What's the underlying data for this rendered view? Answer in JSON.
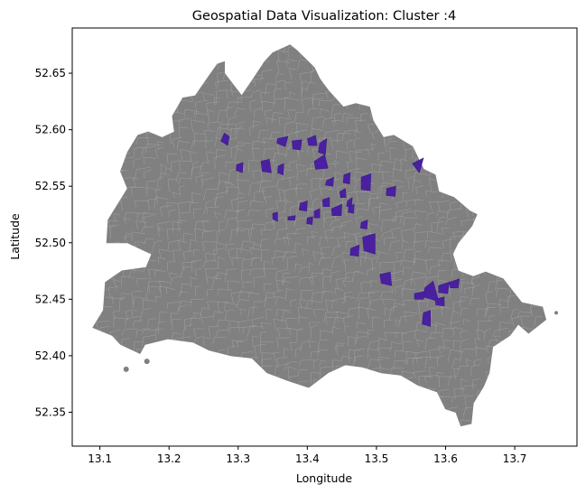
{
  "figure": {
    "title": "Geospatial Data Visualization: Cluster :4",
    "xlabel": "Longitude",
    "ylabel": "Latitude"
  },
  "colors": {
    "base_region": "#808080",
    "district_lines": "#b0b0b0",
    "highlight": "#4a20a0",
    "axes": "#000000",
    "background": "#ffffff"
  },
  "chart_data": {
    "type": "choropleth-map",
    "xlim": [
      13.06,
      13.79
    ],
    "ylim": [
      52.32,
      52.69
    ],
    "xticks": [
      13.1,
      13.2,
      13.3,
      13.4,
      13.5,
      13.6,
      13.7
    ],
    "xtick_labels": [
      "13.1",
      "13.2",
      "13.3",
      "13.4",
      "13.5",
      "13.6",
      "13.7"
    ],
    "yticks": [
      52.35,
      52.4,
      52.45,
      52.5,
      52.55,
      52.6,
      52.65
    ],
    "ytick_labels": [
      "52.35",
      "52.40",
      "52.45",
      "52.50",
      "52.55",
      "52.60",
      "52.65"
    ],
    "grid": false,
    "outline": [
      [
        13.118,
        52.418
      ],
      [
        13.13,
        52.41
      ],
      [
        13.158,
        52.402
      ],
      [
        13.165,
        52.41
      ],
      [
        13.198,
        52.415
      ],
      [
        13.235,
        52.412
      ],
      [
        13.258,
        52.405
      ],
      [
        13.29,
        52.4
      ],
      [
        13.32,
        52.398
      ],
      [
        13.342,
        52.385
      ],
      [
        13.372,
        52.378
      ],
      [
        13.402,
        52.372
      ],
      [
        13.43,
        52.385
      ],
      [
        13.455,
        52.392
      ],
      [
        13.48,
        52.39
      ],
      [
        13.507,
        52.385
      ],
      [
        13.535,
        52.383
      ],
      [
        13.56,
        52.374
      ],
      [
        13.588,
        52.368
      ],
      [
        13.6,
        52.353
      ],
      [
        13.615,
        52.35
      ],
      [
        13.622,
        52.338
      ],
      [
        13.637,
        52.34
      ],
      [
        13.64,
        52.358
      ],
      [
        13.655,
        52.373
      ],
      [
        13.663,
        52.385
      ],
      [
        13.668,
        52.408
      ],
      [
        13.693,
        52.418
      ],
      [
        13.705,
        52.428
      ],
      [
        13.72,
        52.42
      ],
      [
        13.745,
        52.432
      ],
      [
        13.74,
        52.443
      ],
      [
        13.71,
        52.447
      ],
      [
        13.683,
        52.468
      ],
      [
        13.658,
        52.474
      ],
      [
        13.64,
        52.47
      ],
      [
        13.618,
        52.475
      ],
      [
        13.61,
        52.49
      ],
      [
        13.618,
        52.5
      ],
      [
        13.638,
        52.515
      ],
      [
        13.645,
        52.525
      ],
      [
        13.635,
        52.528
      ],
      [
        13.612,
        52.54
      ],
      [
        13.59,
        52.545
      ],
      [
        13.585,
        52.56
      ],
      [
        13.568,
        52.565
      ],
      [
        13.552,
        52.585
      ],
      [
        13.525,
        52.595
      ],
      [
        13.51,
        52.593
      ],
      [
        13.495,
        52.608
      ],
      [
        13.49,
        52.62
      ],
      [
        13.47,
        52.623
      ],
      [
        13.452,
        52.62
      ],
      [
        13.43,
        52.635
      ],
      [
        13.418,
        52.645
      ],
      [
        13.41,
        52.655
      ],
      [
        13.385,
        52.67
      ],
      [
        13.375,
        52.675
      ],
      [
        13.35,
        52.668
      ],
      [
        13.338,
        52.66
      ],
      [
        13.322,
        52.645
      ],
      [
        13.305,
        52.63
      ],
      [
        13.29,
        52.642
      ],
      [
        13.28,
        52.65
      ],
      [
        13.28,
        52.66
      ],
      [
        13.27,
        52.658
      ],
      [
        13.255,
        52.645
      ],
      [
        13.238,
        52.63
      ],
      [
        13.22,
        52.628
      ],
      [
        13.205,
        52.612
      ],
      [
        13.208,
        52.598
      ],
      [
        13.19,
        52.593
      ],
      [
        13.17,
        52.598
      ],
      [
        13.155,
        52.595
      ],
      [
        13.14,
        52.58
      ],
      [
        13.13,
        52.563
      ],
      [
        13.14,
        52.548
      ],
      [
        13.128,
        52.536
      ],
      [
        13.112,
        52.52
      ],
      [
        13.11,
        52.5
      ],
      [
        13.14,
        52.5
      ],
      [
        13.175,
        52.49
      ],
      [
        13.167,
        52.478
      ],
      [
        13.132,
        52.475
      ],
      [
        13.108,
        52.465
      ],
      [
        13.105,
        52.44
      ],
      [
        13.09,
        52.425
      ]
    ],
    "highlighted_districts": [
      [
        [
          13.275,
          52.59
        ],
        [
          13.285,
          52.586
        ],
        [
          13.287,
          52.594
        ],
        [
          13.28,
          52.597
        ]
      ],
      [
        [
          13.357,
          52.592
        ],
        [
          13.372,
          52.594
        ],
        [
          13.368,
          52.585
        ],
        [
          13.356,
          52.588
        ]
      ],
      [
        [
          13.378,
          52.59
        ],
        [
          13.392,
          52.591
        ],
        [
          13.39,
          52.582
        ],
        [
          13.379,
          52.583
        ]
      ],
      [
        [
          13.4,
          52.592
        ],
        [
          13.412,
          52.595
        ],
        [
          13.414,
          52.586
        ],
        [
          13.402,
          52.586
        ]
      ],
      [
        [
          13.418,
          52.588
        ],
        [
          13.428,
          52.592
        ],
        [
          13.426,
          52.578
        ],
        [
          13.416,
          52.58
        ]
      ],
      [
        [
          13.41,
          52.572
        ],
        [
          13.425,
          52.578
        ],
        [
          13.43,
          52.566
        ],
        [
          13.412,
          52.565
        ]
      ],
      [
        [
          13.298,
          52.569
        ],
        [
          13.307,
          52.571
        ],
        [
          13.306,
          52.562
        ],
        [
          13.297,
          52.564
        ]
      ],
      [
        [
          13.333,
          52.572
        ],
        [
          13.345,
          52.574
        ],
        [
          13.348,
          52.562
        ],
        [
          13.335,
          52.563
        ]
      ],
      [
        [
          13.358,
          52.568
        ],
        [
          13.366,
          52.57
        ],
        [
          13.365,
          52.56
        ],
        [
          13.357,
          52.562
        ]
      ],
      [
        [
          13.428,
          52.555
        ],
        [
          13.438,
          52.558
        ],
        [
          13.437,
          52.55
        ],
        [
          13.426,
          52.551
        ]
      ],
      [
        [
          13.453,
          52.56
        ],
        [
          13.462,
          52.562
        ],
        [
          13.461,
          52.552
        ],
        [
          13.452,
          52.553
        ]
      ],
      [
        [
          13.478,
          52.558
        ],
        [
          13.492,
          52.561
        ],
        [
          13.491,
          52.546
        ],
        [
          13.478,
          52.547
        ]
      ],
      [
        [
          13.515,
          52.548
        ],
        [
          13.528,
          52.55
        ],
        [
          13.527,
          52.541
        ],
        [
          13.514,
          52.542
        ]
      ],
      [
        [
          13.552,
          52.57
        ],
        [
          13.568,
          52.575
        ],
        [
          13.562,
          52.562
        ]
      ],
      [
        [
          13.447,
          52.545
        ],
        [
          13.455,
          52.548
        ],
        [
          13.456,
          52.54
        ],
        [
          13.448,
          52.54
        ]
      ],
      [
        [
          13.422,
          52.538
        ],
        [
          13.432,
          52.54
        ],
        [
          13.432,
          52.532
        ],
        [
          13.423,
          52.532
        ]
      ],
      [
        [
          13.458,
          52.537
        ],
        [
          13.465,
          52.54
        ],
        [
          13.464,
          52.532
        ],
        [
          13.457,
          52.532
        ]
      ],
      [
        [
          13.39,
          52.535
        ],
        [
          13.4,
          52.537
        ],
        [
          13.399,
          52.528
        ],
        [
          13.388,
          52.529
        ]
      ],
      [
        [
          13.41,
          52.528
        ],
        [
          13.418,
          52.53
        ],
        [
          13.418,
          52.522
        ],
        [
          13.41,
          52.522
        ]
      ],
      [
        [
          13.435,
          52.53
        ],
        [
          13.45,
          52.534
        ],
        [
          13.449,
          52.524
        ],
        [
          13.436,
          52.524
        ]
      ],
      [
        [
          13.46,
          52.532
        ],
        [
          13.468,
          52.534
        ],
        [
          13.467,
          52.526
        ],
        [
          13.459,
          52.527
        ]
      ],
      [
        [
          13.35,
          52.526
        ],
        [
          13.357,
          52.527
        ],
        [
          13.357,
          52.519
        ],
        [
          13.35,
          52.521
        ]
      ],
      [
        [
          13.372,
          52.523
        ],
        [
          13.383,
          52.524
        ],
        [
          13.382,
          52.52
        ],
        [
          13.372,
          52.52
        ]
      ],
      [
        [
          13.4,
          52.522
        ],
        [
          13.408,
          52.523
        ],
        [
          13.407,
          52.516
        ],
        [
          13.399,
          52.517
        ]
      ],
      [
        [
          13.478,
          52.518
        ],
        [
          13.487,
          52.52
        ],
        [
          13.486,
          52.512
        ],
        [
          13.477,
          52.513
        ]
      ],
      [
        [
          13.463,
          52.495
        ],
        [
          13.475,
          52.498
        ],
        [
          13.474,
          52.488
        ],
        [
          13.462,
          52.489
        ]
      ],
      [
        [
          13.48,
          52.505
        ],
        [
          13.498,
          52.508
        ],
        [
          13.498,
          52.49
        ],
        [
          13.482,
          52.493
        ]
      ],
      [
        [
          13.505,
          52.472
        ],
        [
          13.52,
          52.474
        ],
        [
          13.522,
          52.462
        ],
        [
          13.507,
          52.464
        ]
      ],
      [
        [
          13.57,
          52.46
        ],
        [
          13.582,
          52.466
        ],
        [
          13.59,
          52.448
        ],
        [
          13.568,
          52.452
        ]
      ],
      [
        [
          13.555,
          52.455
        ],
        [
          13.57,
          52.457
        ],
        [
          13.568,
          52.45
        ],
        [
          13.555,
          52.45
        ]
      ],
      [
        [
          13.59,
          52.462
        ],
        [
          13.605,
          52.465
        ],
        [
          13.603,
          52.455
        ],
        [
          13.59,
          52.456
        ]
      ],
      [
        [
          13.605,
          52.465
        ],
        [
          13.62,
          52.468
        ],
        [
          13.618,
          52.46
        ],
        [
          13.607,
          52.46
        ]
      ],
      [
        [
          13.585,
          52.45
        ],
        [
          13.598,
          52.452
        ],
        [
          13.598,
          52.444
        ],
        [
          13.586,
          52.445
        ]
      ],
      [
        [
          13.568,
          52.438
        ],
        [
          13.578,
          52.44
        ],
        [
          13.578,
          52.426
        ],
        [
          13.566,
          52.428
        ]
      ]
    ]
  }
}
